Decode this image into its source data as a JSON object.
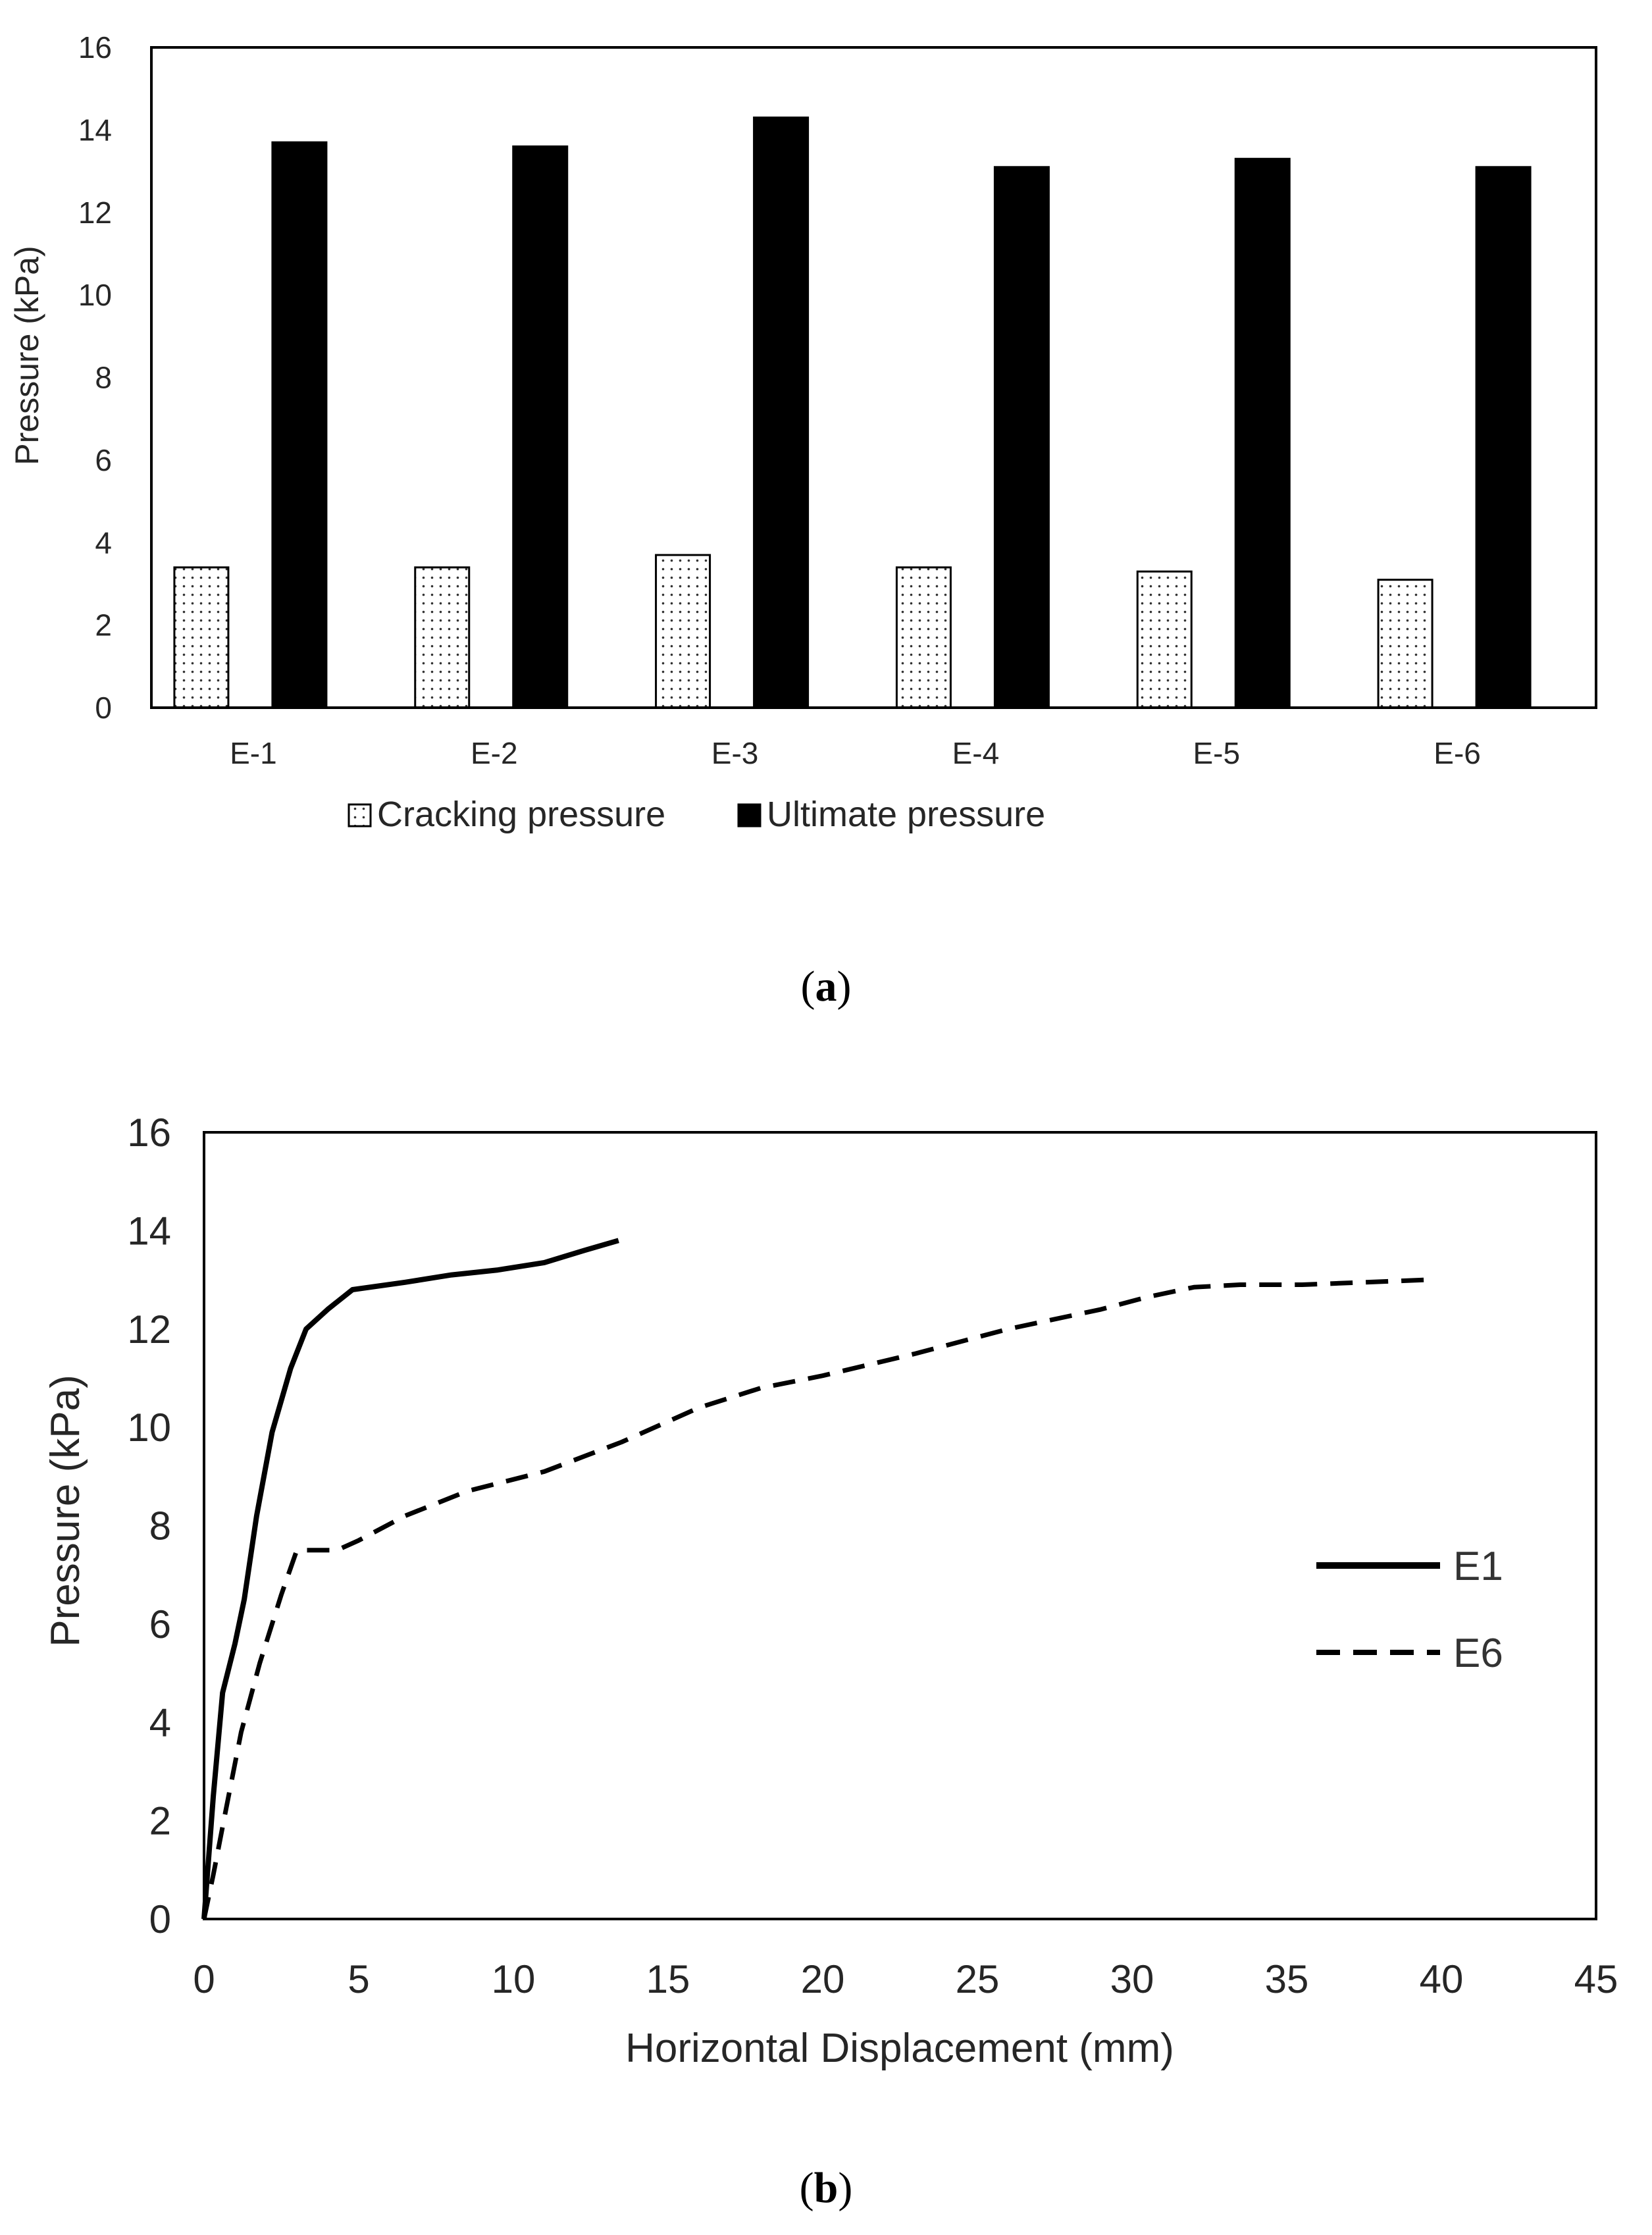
{
  "chart_data": [
    {
      "type": "bar",
      "panel_label": "a",
      "title": "",
      "ylabel": "Pressure (kPa)",
      "xlabel": "",
      "ylim": [
        0,
        16
      ],
      "yticks": [
        0,
        2,
        4,
        6,
        8,
        10,
        12,
        14,
        16
      ],
      "categories": [
        "E-1",
        "E-2",
        "E-3",
        "E-4",
        "E-5",
        "E-6"
      ],
      "series": [
        {
          "name": "Cracking pressure",
          "pattern": "dotted",
          "values": [
            3.4,
            3.4,
            3.7,
            3.4,
            3.3,
            3.1
          ]
        },
        {
          "name": "Ultimate pressure",
          "pattern": "solid",
          "values": [
            13.7,
            13.6,
            14.3,
            13.1,
            13.3,
            13.1
          ]
        }
      ],
      "legend_position": "bottom"
    },
    {
      "type": "line",
      "panel_label": "b",
      "title": "",
      "xlabel": "Horizontal Displacement (mm)",
      "ylabel": "Pressure  (kPa)",
      "xlim": [
        0,
        45
      ],
      "ylim": [
        0,
        16
      ],
      "xticks": [
        0,
        5,
        10,
        15,
        20,
        25,
        30,
        35,
        40,
        45
      ],
      "yticks": [
        0,
        2,
        4,
        6,
        8,
        10,
        12,
        14,
        16
      ],
      "series": [
        {
          "name": "E1",
          "style": "solid",
          "x": [
            0,
            0.3,
            0.6,
            1.0,
            1.3,
            1.7,
            2.2,
            2.8,
            3.3,
            4.0,
            4.8,
            6.5,
            8.0,
            9.5,
            11.0,
            12.3,
            13.4
          ],
          "y": [
            0,
            2.5,
            4.6,
            5.6,
            6.5,
            8.2,
            9.9,
            11.2,
            12.0,
            12.4,
            12.8,
            12.95,
            13.1,
            13.2,
            13.35,
            13.6,
            13.8
          ]
        },
        {
          "name": "E6",
          "style": "dashed",
          "x": [
            0,
            0.3,
            0.7,
            1.2,
            1.8,
            2.5,
            3.0,
            3.5,
            4.3,
            5.0,
            6.5,
            8.5,
            11.0,
            13.5,
            16.0,
            18.0,
            20.0,
            23.0,
            26.0,
            29.0,
            30.5,
            32.0,
            33.5,
            35.5,
            37.5,
            39.5
          ],
          "y": [
            0,
            0.9,
            2.2,
            3.8,
            5.2,
            6.6,
            7.5,
            7.5,
            7.5,
            7.7,
            8.2,
            8.7,
            9.1,
            9.7,
            10.4,
            10.8,
            11.05,
            11.5,
            12.0,
            12.4,
            12.65,
            12.85,
            12.9,
            12.9,
            12.95,
            13.0
          ]
        }
      ],
      "legend_position": "right"
    }
  ],
  "captions": {
    "a": "a",
    "b": "b",
    "open": "(",
    "close": ")"
  },
  "legend_icon_names": {
    "cracking": "dotted-square-icon",
    "ultimate": "solid-square-icon"
  }
}
